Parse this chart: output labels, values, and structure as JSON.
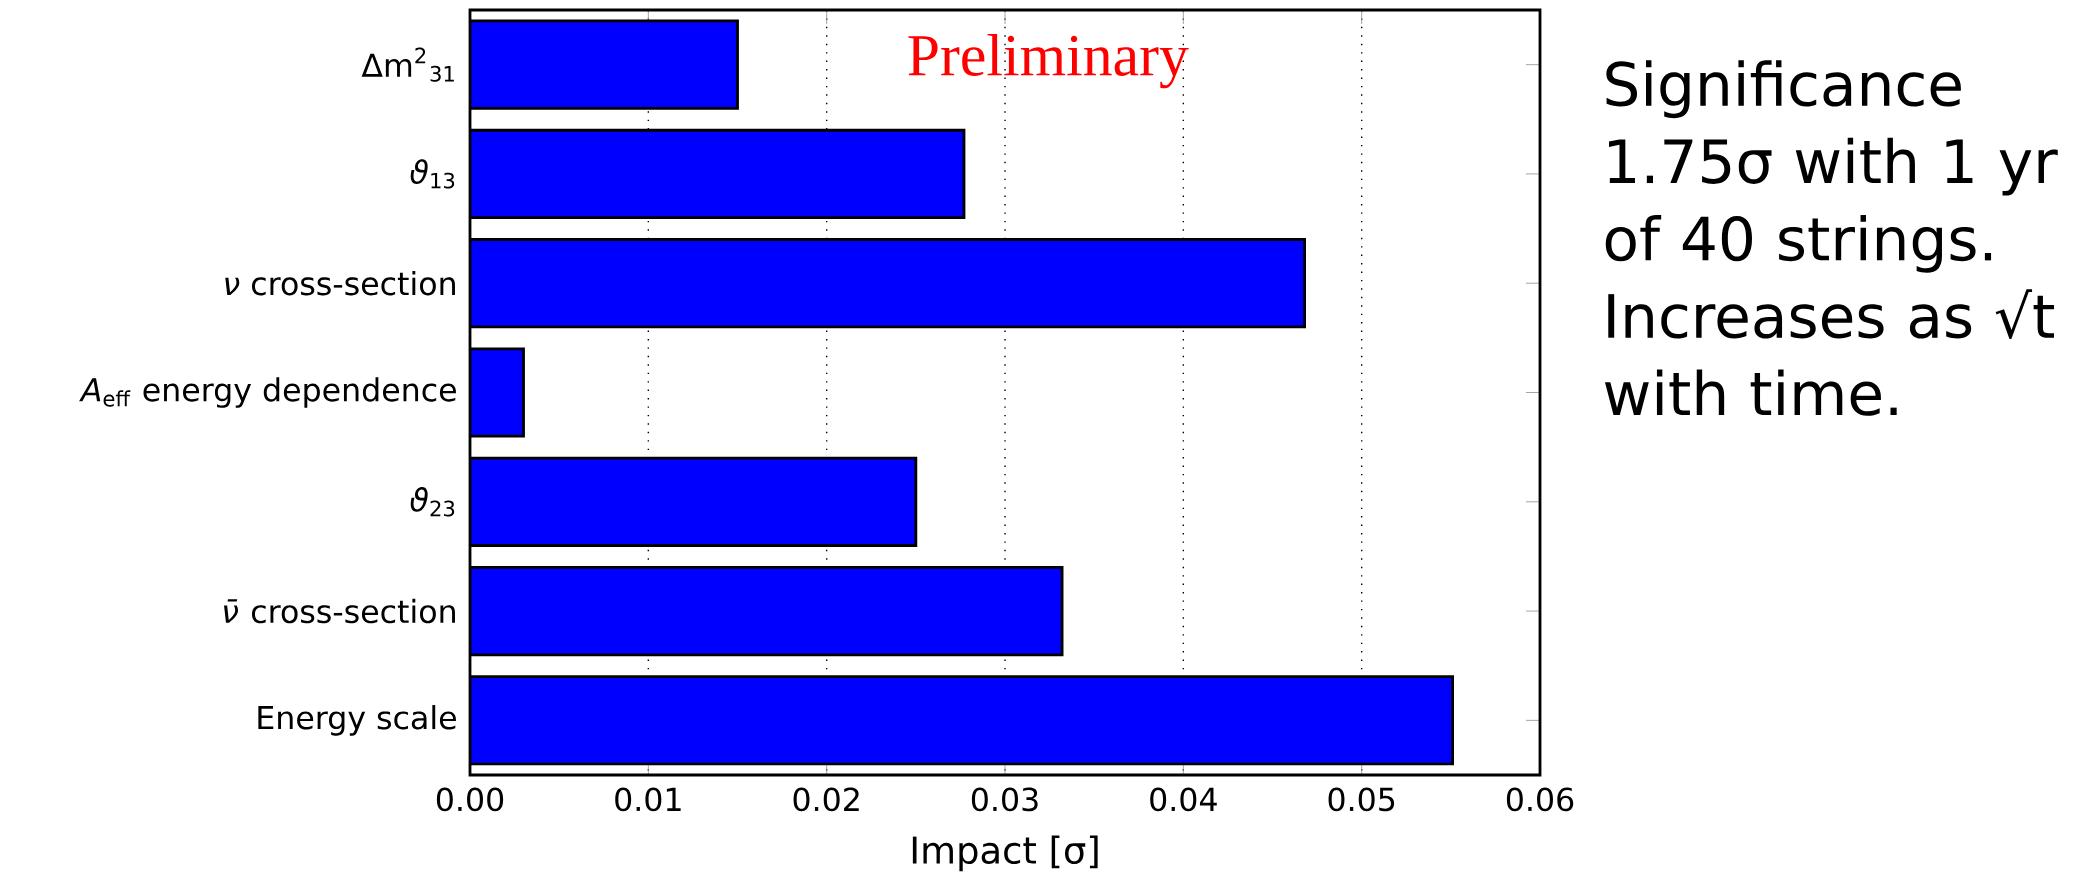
{
  "chart_data": {
    "type": "bar",
    "orientation": "horizontal",
    "categories": [
      "Δm$^{2}$$_{31}$",
      "*ϑ*$_{13}$",
      "*ν* cross-section",
      "*A*$_{eff}$ energy dependence",
      "*ϑ*$_{23}$",
      "*ν̄* cross-section",
      "Energy scale"
    ],
    "values": [
      0.015,
      0.0277,
      0.0468,
      0.003,
      0.025,
      0.0332,
      0.0551
    ],
    "color": "#0000ff",
    "xlabel": "Impact [σ]",
    "xlim": [
      0,
      0.06
    ],
    "xticks": [
      {
        "value": 0,
        "label": "0.00"
      },
      {
        "value": 0.01,
        "label": "0.01"
      },
      {
        "value": 0.02,
        "label": "0.02"
      },
      {
        "value": 0.03,
        "label": "0.03"
      },
      {
        "value": 0.04,
        "label": "0.04"
      },
      {
        "value": 0.05,
        "label": "0.05"
      },
      {
        "value": 0.06,
        "label": "0.06"
      }
    ],
    "grid": "x",
    "annotations": [
      "Preliminary",
      "Significance 1.75σ with 1 yr of 40 strings.",
      "Increases as √t with time."
    ]
  }
}
